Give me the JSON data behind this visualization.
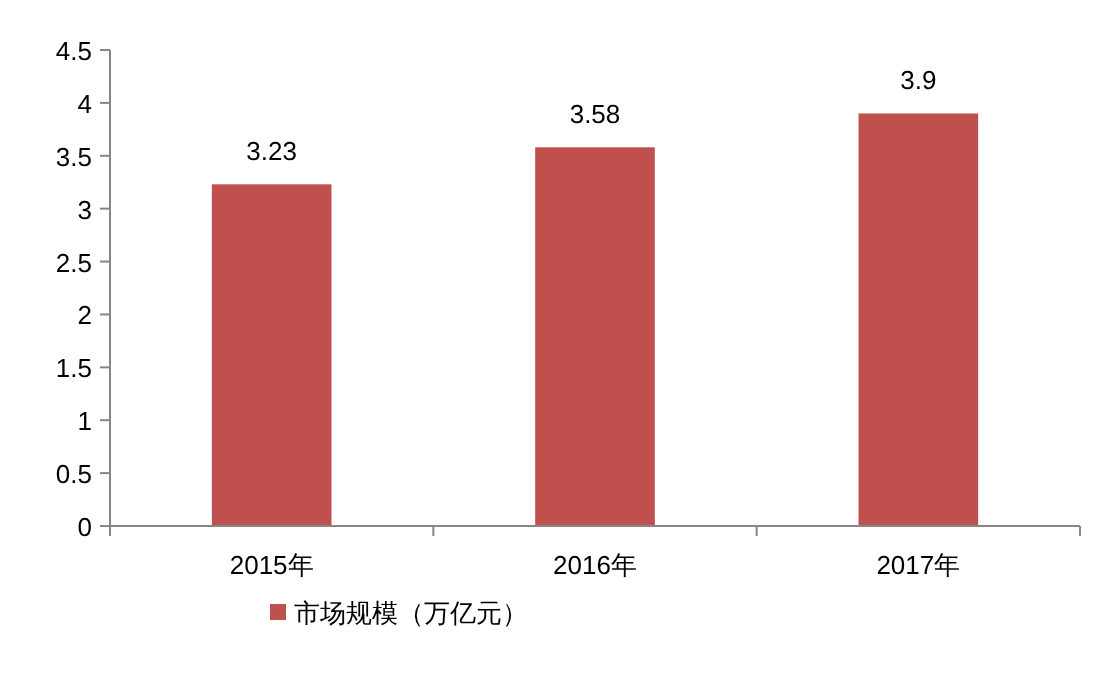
{
  "chart_data": {
    "type": "bar",
    "categories": [
      "2015年",
      "2016年",
      "2017年"
    ],
    "series": [
      {
        "name": "市场规模（万亿元）",
        "color": "#c0504d",
        "values": [
          3.23,
          3.58,
          3.9
        ]
      }
    ],
    "ylim": [
      0,
      4.5
    ],
    "yticks": [
      0,
      0.5,
      1,
      1.5,
      2,
      2.5,
      3,
      3.5,
      4,
      4.5
    ],
    "data_labels": true,
    "legend": "bottom",
    "grid": false
  }
}
